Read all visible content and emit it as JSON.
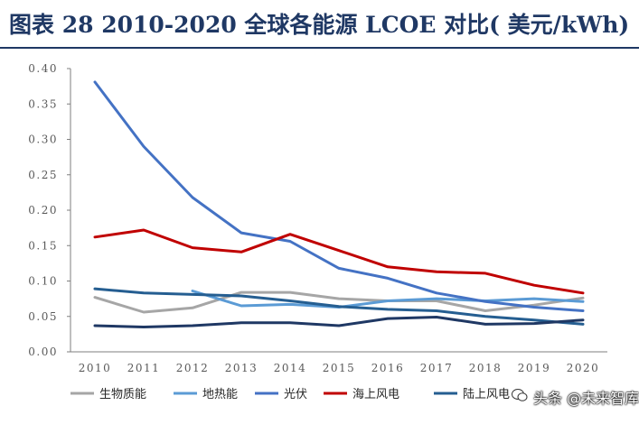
{
  "header": {
    "title": "图表 28   2010-2020 全球各能源 LCOE 对比( 美元/kWh)"
  },
  "watermark": {
    "text": "头条 @未来智库"
  },
  "chart_data": {
    "type": "line",
    "x": [
      "2010",
      "2011",
      "2012",
      "2013",
      "2014",
      "2015",
      "2016",
      "2017",
      "2018",
      "2019",
      "2020"
    ],
    "y_ticks": [
      "0.00",
      "0.05",
      "0.10",
      "0.15",
      "0.20",
      "0.25",
      "0.30",
      "0.35",
      "0.40"
    ],
    "ylim": [
      0,
      0.4
    ],
    "grid": false,
    "legend_position": "bottom",
    "series": [
      {
        "name": "生物质能",
        "color": "#a6a6a6",
        "values": [
          0.077,
          0.056,
          0.062,
          0.084,
          0.084,
          0.075,
          0.072,
          0.072,
          0.058,
          0.066,
          0.076
        ]
      },
      {
        "name": "地热能",
        "color": "#5b9bd5",
        "values": [
          null,
          null,
          0.086,
          0.065,
          0.067,
          0.063,
          0.072,
          0.075,
          0.072,
          0.075,
          0.071
        ]
      },
      {
        "name": "光伏",
        "color": "#4472c4",
        "values": [
          0.381,
          0.29,
          0.218,
          0.168,
          0.156,
          0.118,
          0.104,
          0.083,
          0.071,
          0.063,
          0.058
        ]
      },
      {
        "name": "海上风电",
        "color": "#c00000",
        "values": [
          0.162,
          0.172,
          0.147,
          0.141,
          0.166,
          0.143,
          0.12,
          0.113,
          0.111,
          0.094,
          0.083
        ]
      },
      {
        "name": "陆上风电",
        "color": "#255e91",
        "values": [
          0.089,
          0.083,
          0.081,
          0.079,
          0.072,
          0.064,
          0.06,
          0.058,
          0.05,
          0.045,
          0.039
        ]
      },
      {
        "name": "",
        "color": "#1f3864",
        "values": [
          0.037,
          0.035,
          0.037,
          0.041,
          0.041,
          0.037,
          0.047,
          0.049,
          0.039,
          0.04,
          0.045
        ]
      }
    ]
  }
}
